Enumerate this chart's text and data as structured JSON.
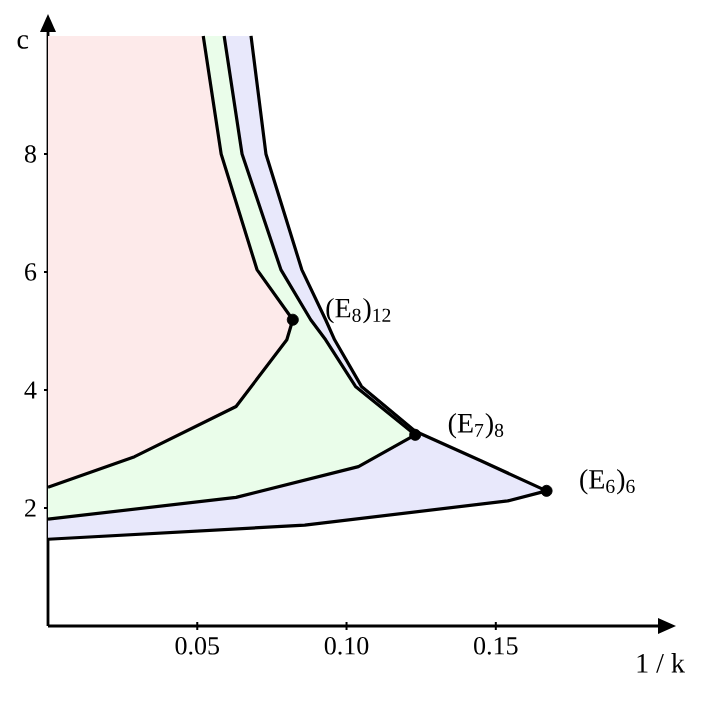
{
  "chart_data": {
    "type": "area",
    "xlabel": "1 / k",
    "ylabel": "c",
    "xlim": [
      0,
      0.205
    ],
    "ylim": [
      0,
      10.1
    ],
    "xticks": [
      0.05,
      {
        "value": 0.1,
        "label": "0.10"
      },
      0.15
    ],
    "yticks": [
      2,
      4,
      6,
      8
    ],
    "series": [
      {
        "color": "#e8e8fb",
        "x": [
          0,
          0.068,
          0.073,
          0.085,
          0.093,
          0.096,
          0.105,
          0.123,
          0.145,
          0.167,
          0.154,
          0.086,
          0
        ],
        "values": [
          10,
          10,
          8.0,
          6.04,
          5.19,
          4.85,
          4.06,
          3.3,
          2.8,
          2.29,
          2.12,
          1.71,
          1.47
        ]
      },
      {
        "color": "#eafdea",
        "x": [
          0,
          0.059,
          0.065,
          0.078,
          0.088,
          0.093,
          0.103,
          0.123,
          0.104,
          0.063,
          0
        ],
        "values": [
          10,
          10,
          8.0,
          6.04,
          5.19,
          4.85,
          4.06,
          3.24,
          2.7,
          2.18,
          1.81
        ]
      },
      {
        "color": "#fdeaea",
        "x": [
          0,
          0.052,
          0.058,
          0.07,
          0.082,
          0.08,
          0.063,
          0.029,
          0
        ],
        "values": [
          10,
          10,
          8.0,
          6.04,
          5.19,
          4.85,
          3.72,
          2.87,
          2.35
        ]
      },
      {
        "type": "scatter",
        "color": "#000000",
        "x": [
          0.082,
          0.123,
          0.167
        ],
        "values": [
          5.19,
          3.24,
          2.29
        ]
      }
    ],
    "annotations": [
      {
        "text": "(E$_{8}$)$_{12}$",
        "x": 0.082,
        "y": 5.19
      },
      {
        "text": "(E$_{7}$)$_{8}$",
        "x": 0.123,
        "y": 3.24
      },
      {
        "text": "(E$_{6}$)$_{6}$",
        "x": 0.167,
        "y": 2.29
      }
    ]
  }
}
